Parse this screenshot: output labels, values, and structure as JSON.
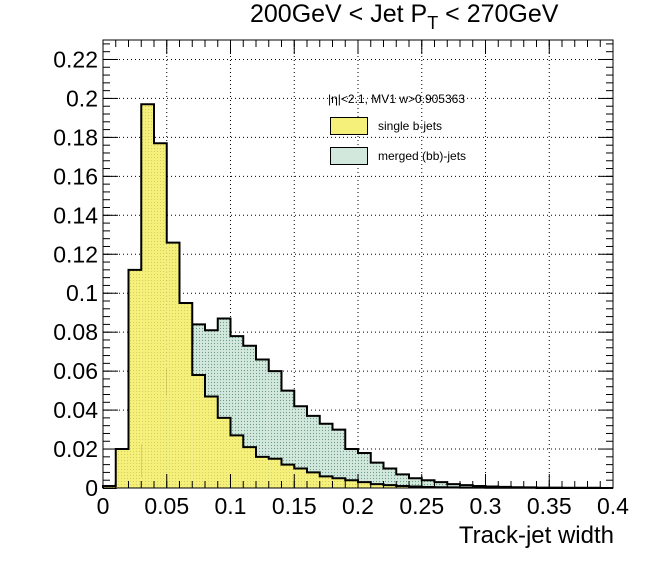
{
  "chart_data": {
    "type": "histogram",
    "title": "200GeV < Jet P",
    "title_sub": "T",
    "title_suffix": " < 270GeV",
    "xlabel": "Track-jet width",
    "ylabel": "",
    "xlim": [
      0,
      0.4
    ],
    "ylim": [
      0,
      0.23
    ],
    "grid": true,
    "x_ticks": [
      "0",
      "0.05",
      "0.1",
      "0.15",
      "0.2",
      "0.25",
      "0.3",
      "0.35",
      "0.4"
    ],
    "y_ticks": [
      "0",
      "0.02",
      "0.04",
      "0.06",
      "0.08",
      "0.1",
      "0.12",
      "0.14",
      "0.16",
      "0.18",
      "0.2",
      "0.22"
    ],
    "bin_width": 0.01,
    "bin_start": 0.0,
    "legend": {
      "header": "|η|<2.1, MV1 w>0.905363",
      "placement": "top-right"
    },
    "series": [
      {
        "name": "single b-jets",
        "color": "#f4f07a",
        "values": [
          0.001,
          0.02,
          0.112,
          0.197,
          0.177,
          0.126,
          0.095,
          0.058,
          0.047,
          0.036,
          0.027,
          0.021,
          0.016,
          0.015,
          0.012,
          0.01,
          0.008,
          0.006,
          0.005,
          0.004,
          0.003,
          0.002,
          0.0015,
          0.001,
          0.0008,
          0.0005,
          0.0004,
          0.0003,
          0.0002,
          0.0002,
          0.0001,
          0.0001,
          0.0001,
          0.0001,
          0.0,
          0.0,
          0.0,
          0.0,
          0.0,
          0.0
        ]
      },
      {
        "name": "merged (bb)-jets",
        "color": "#d2e8dc",
        "values": [
          0.0,
          0.002,
          0.006,
          0.022,
          0.048,
          0.061,
          0.074,
          0.084,
          0.081,
          0.087,
          0.078,
          0.073,
          0.066,
          0.06,
          0.05,
          0.042,
          0.037,
          0.033,
          0.03,
          0.02,
          0.018,
          0.013,
          0.01,
          0.007,
          0.005,
          0.004,
          0.003,
          0.002,
          0.0015,
          0.001,
          0.0008,
          0.0006,
          0.0004,
          0.0003,
          0.0002,
          0.0002,
          0.0001,
          0.0001,
          0.0001,
          0.0
        ]
      }
    ]
  }
}
